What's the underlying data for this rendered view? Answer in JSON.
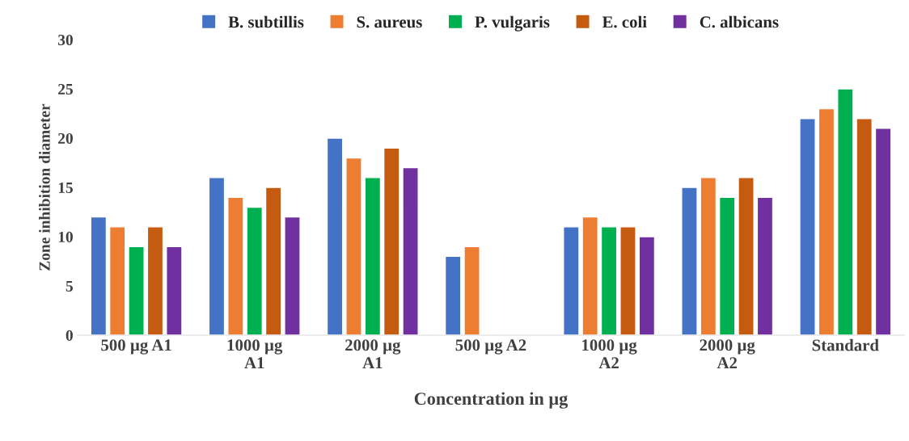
{
  "chart_data": {
    "type": "bar",
    "xlabel": "Concentration in µg",
    "ylabel": "Zone inhibition diameter",
    "categories": [
      "500 µg A1",
      "1000 µg A1",
      "2000 µg A1",
      "500 µg A2",
      "1000 µg A2",
      "2000 µg A2",
      "Standard"
    ],
    "series": [
      {
        "name": "B. subtillis",
        "color": "#4472c4",
        "values": [
          12,
          16,
          20,
          8,
          11,
          15,
          22
        ]
      },
      {
        "name": "S. aureus",
        "color": "#ed7d31",
        "values": [
          11,
          14,
          18,
          9,
          12,
          16,
          23
        ]
      },
      {
        "name": "P. vulgaris",
        "color": "#00b050",
        "values": [
          9,
          13,
          16,
          null,
          11,
          14,
          25
        ]
      },
      {
        "name": "E. coli",
        "color": "#c55a11",
        "values": [
          11,
          15,
          19,
          null,
          11,
          16,
          22
        ]
      },
      {
        "name": "C. albicans",
        "color": "#7030a0",
        "values": [
          9,
          12,
          17,
          null,
          10,
          14,
          21
        ]
      }
    ],
    "ylim": [
      0,
      30
    ],
    "yticks": [
      0,
      5,
      10,
      15,
      20,
      25,
      30
    ],
    "grid": false,
    "legend": "top"
  }
}
